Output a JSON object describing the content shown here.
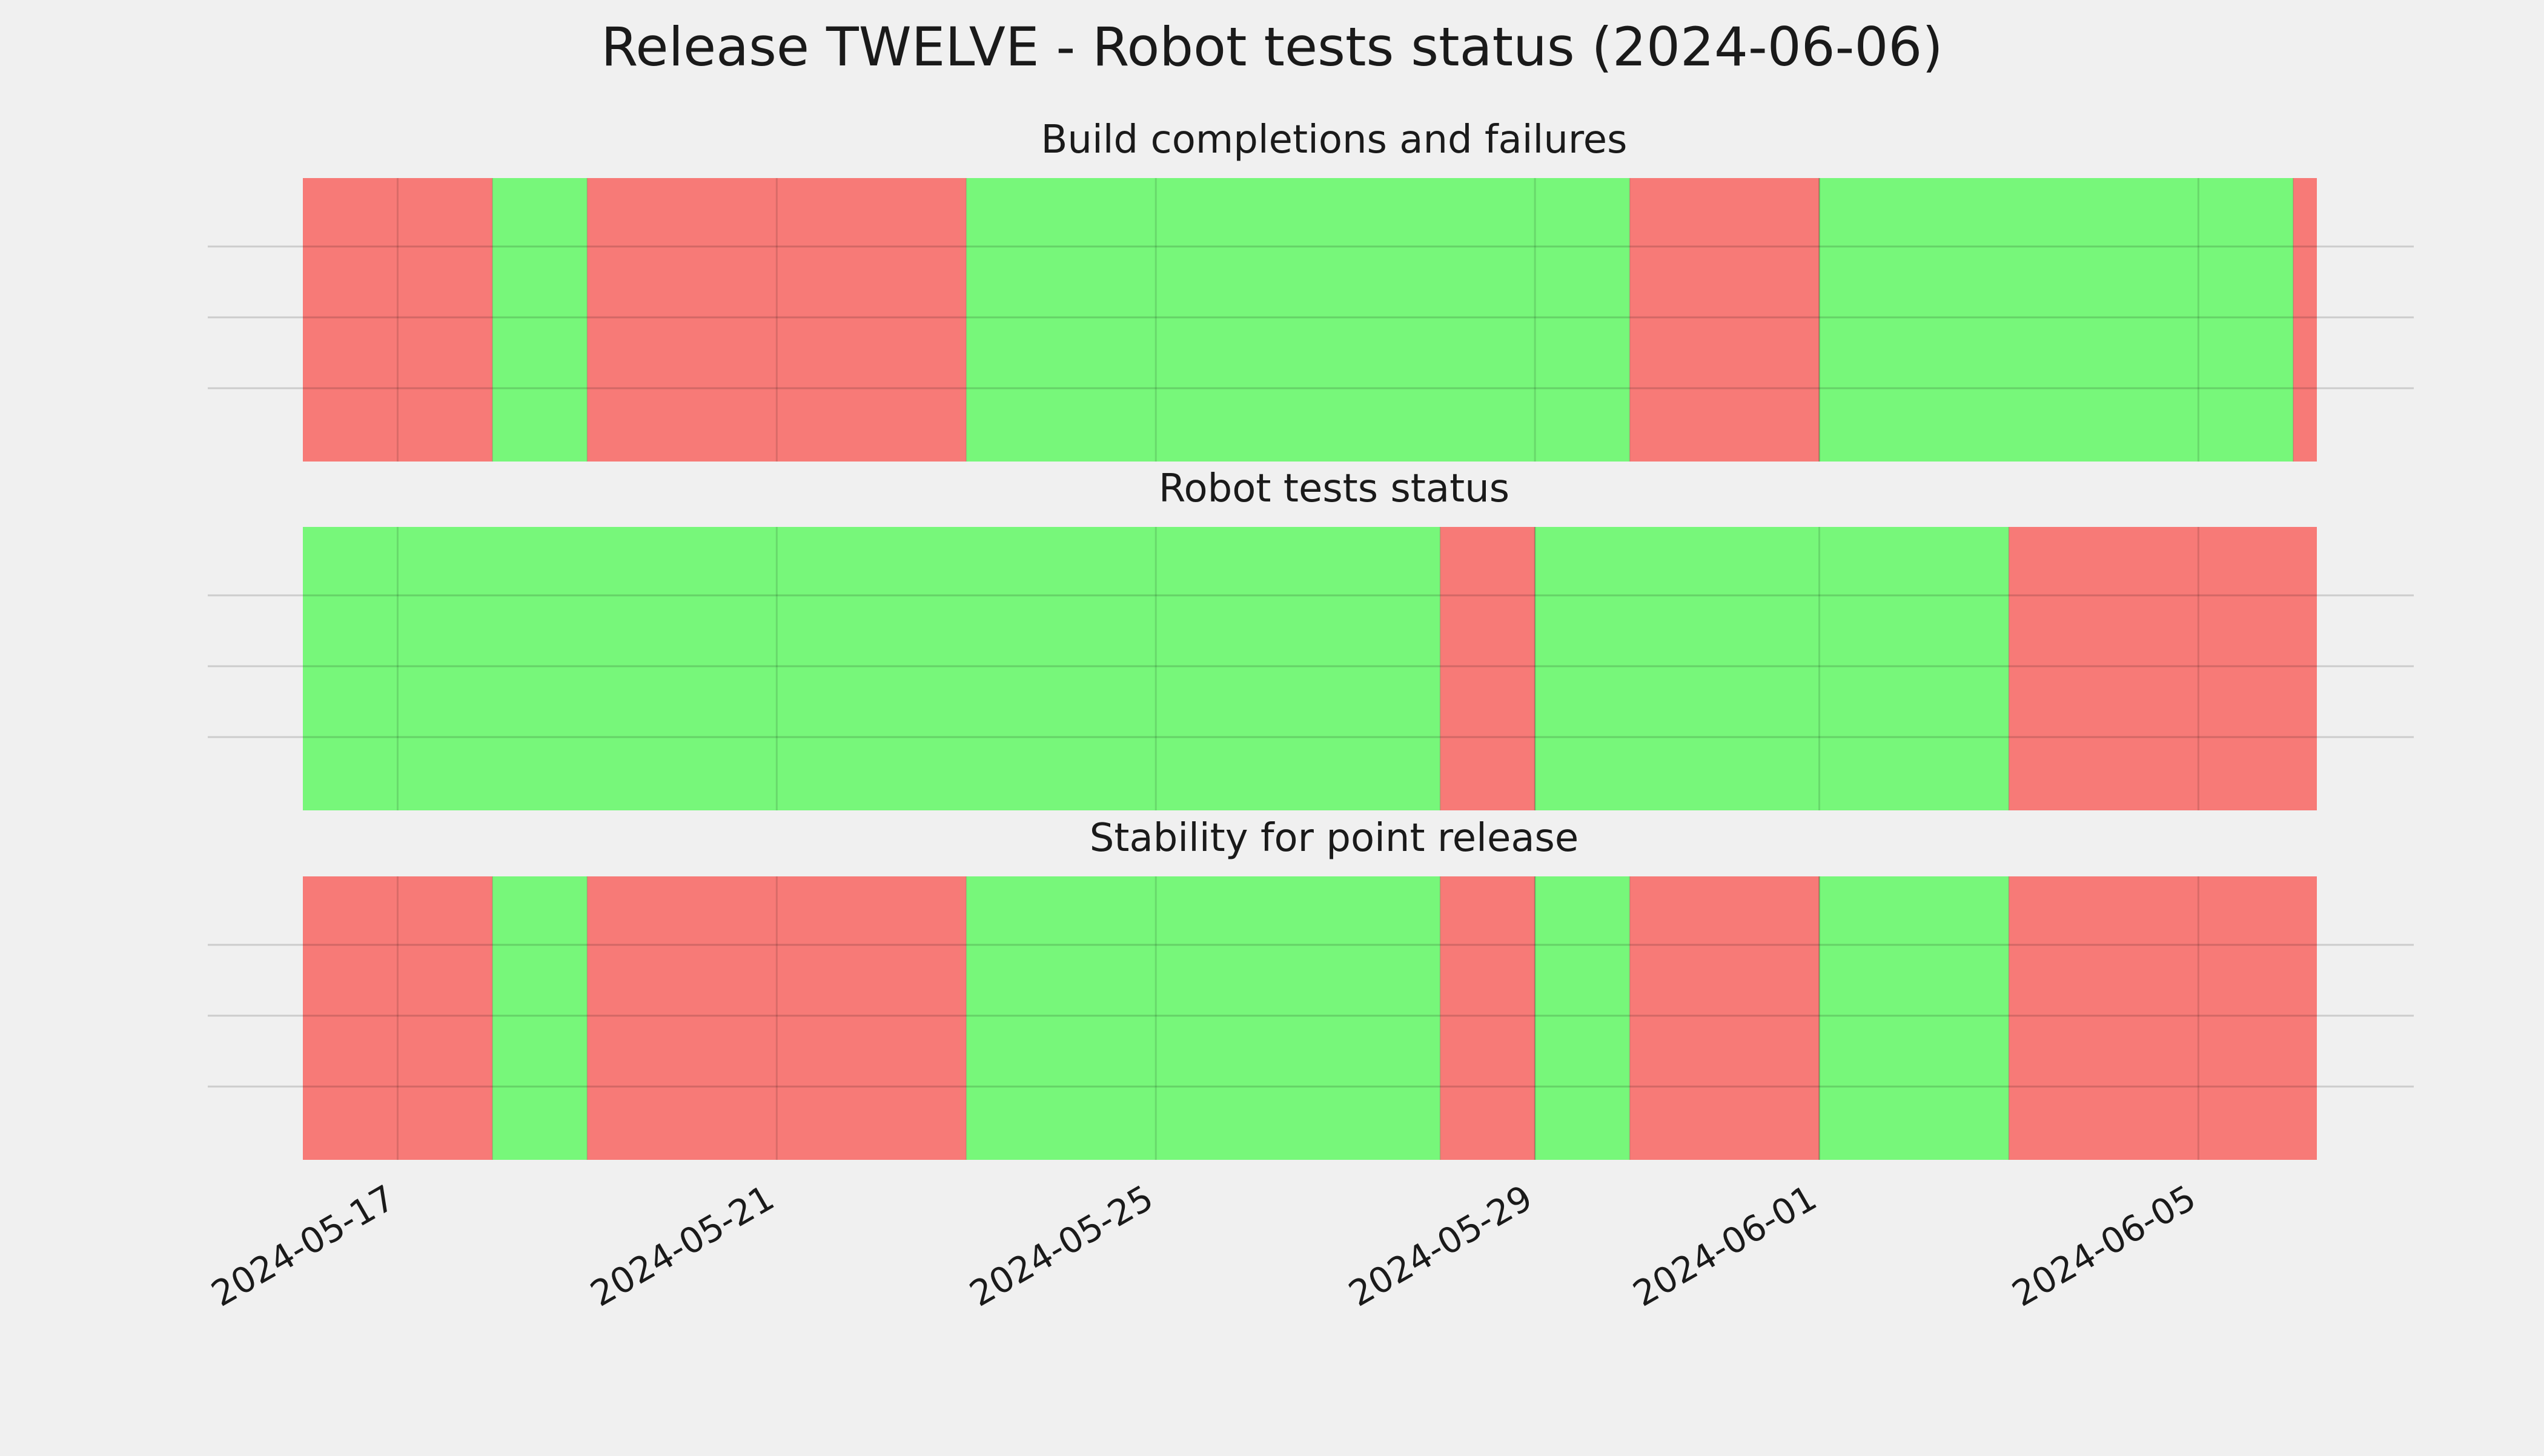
{
  "chart_data": {
    "type": "timeline",
    "title": "Release TWELVE - Robot tests status (2024-06-06)",
    "x_range": [
      "2024-05-16",
      "2024-06-06"
    ],
    "x_ticks": [
      "2024-05-17",
      "2024-05-21",
      "2024-05-25",
      "2024-05-29",
      "2024-06-01",
      "2024-06-05"
    ],
    "colors": {
      "pass": "#77f77a",
      "fail": "#f77a77"
    },
    "grid": true,
    "panels": [
      {
        "title": "Build completions and failures",
        "segments": [
          {
            "start": "2024-05-16",
            "end": "2024-05-18",
            "status": "fail"
          },
          {
            "start": "2024-05-18",
            "end": "2024-05-19",
            "status": "pass"
          },
          {
            "start": "2024-05-19",
            "end": "2024-05-23",
            "status": "fail"
          },
          {
            "start": "2024-05-23",
            "end": "2024-05-30",
            "status": "pass"
          },
          {
            "start": "2024-05-30",
            "end": "2024-06-01",
            "status": "fail"
          },
          {
            "start": "2024-06-01",
            "end": "2024-06-06",
            "status": "pass"
          },
          {
            "start": "2024-06-06",
            "end": "2024-06-06",
            "status": "fail"
          }
        ]
      },
      {
        "title": "Robot tests status",
        "segments": [
          {
            "start": "2024-05-16",
            "end": "2024-05-28",
            "status": "pass"
          },
          {
            "start": "2024-05-28",
            "end": "2024-05-29",
            "status": "fail"
          },
          {
            "start": "2024-05-29",
            "end": "2024-06-03",
            "status": "pass"
          },
          {
            "start": "2024-06-03",
            "end": "2024-06-06",
            "status": "fail"
          }
        ]
      },
      {
        "title": "Stability for point release",
        "segments": [
          {
            "start": "2024-05-16",
            "end": "2024-05-18",
            "status": "fail"
          },
          {
            "start": "2024-05-18",
            "end": "2024-05-19",
            "status": "pass"
          },
          {
            "start": "2024-05-19",
            "end": "2024-05-23",
            "status": "fail"
          },
          {
            "start": "2024-05-23",
            "end": "2024-05-28",
            "status": "pass"
          },
          {
            "start": "2024-05-28",
            "end": "2024-05-29",
            "status": "fail"
          },
          {
            "start": "2024-05-29",
            "end": "2024-05-30",
            "status": "pass"
          },
          {
            "start": "2024-05-30",
            "end": "2024-06-01",
            "status": "fail"
          },
          {
            "start": "2024-06-01",
            "end": "2024-06-03",
            "status": "pass"
          },
          {
            "start": "2024-06-03",
            "end": "2024-06-06",
            "status": "fail"
          }
        ]
      }
    ]
  }
}
